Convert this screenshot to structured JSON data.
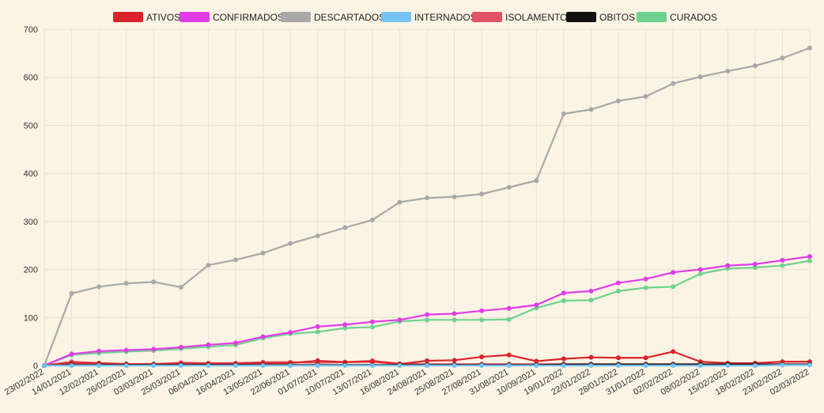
{
  "chart_data": {
    "type": "line",
    "categories": [
      "23/02/2022",
      "14/01/2021",
      "12/02/2021",
      "26/02/2021",
      "03/03/2021",
      "25/03/2021",
      "06/04/2021",
      "16/04/2021",
      "13/05/2021",
      "22/06/2021",
      "01/07/2021",
      "10/07/2021",
      "13/07/2021",
      "16/08/2021",
      "24/08/2021",
      "25/08/2021",
      "27/08/2021",
      "31/08/2021",
      "10/09/2021",
      "19/01/2022",
      "22/01/2022",
      "28/01/2022",
      "31/01/2022",
      "02/02/2022",
      "08/02/2022",
      "15/02/2022",
      "18/02/2022",
      "23/02/2022",
      "02/03/2022"
    ],
    "ylim": [
      0,
      700
    ],
    "yticks": [
      0,
      100,
      200,
      300,
      400,
      500,
      600,
      700
    ],
    "legend_position": "top-center",
    "grid": true,
    "series": [
      {
        "name": "ATIVOS",
        "color": "#d8232a",
        "values": [
          0,
          5,
          5,
          3,
          3,
          4,
          4,
          4,
          5,
          5,
          10,
          7,
          8,
          3,
          10,
          11,
          18,
          22,
          9,
          14,
          17,
          16,
          16,
          29,
          8,
          5,
          5,
          8,
          8
        ]
      },
      {
        "name": "CONFIRMADOS",
        "color": "#e13ce6",
        "values": [
          0,
          24,
          30,
          32,
          34,
          38,
          43,
          47,
          60,
          69,
          81,
          85,
          91,
          95,
          106,
          108,
          114,
          119,
          126,
          151,
          155,
          172,
          180,
          194,
          200,
          208,
          211,
          219,
          227
        ]
      },
      {
        "name": "DESCARTADOS",
        "color": "#a8a8a8",
        "values": [
          0,
          150,
          164,
          171,
          174,
          163,
          209,
          220,
          234,
          254,
          270,
          287,
          303,
          340,
          349,
          351,
          357,
          371,
          385,
          524,
          533,
          551,
          560,
          587,
          601,
          613,
          624,
          640,
          661
        ]
      },
      {
        "name": "INTERNADOS",
        "color": "#74c2f0",
        "values": [
          0,
          0,
          0,
          0,
          0,
          0,
          0,
          0,
          0,
          0,
          0,
          0,
          0,
          0,
          0,
          0,
          0,
          0,
          0,
          0,
          0,
          0,
          0,
          0,
          0,
          0,
          0,
          1,
          1
        ]
      },
      {
        "name": "ISOLAMENTO",
        "color": "#e05566",
        "values": [
          0,
          8,
          5,
          3,
          3,
          6,
          5,
          5,
          7,
          7,
          6,
          7,
          10,
          4,
          3,
          3,
          3,
          3,
          3,
          3,
          3,
          3,
          3,
          3,
          3,
          3,
          3,
          3,
          3
        ]
      },
      {
        "name": "OBITOS",
        "color": "#111111",
        "values": [
          0,
          1,
          1,
          1,
          1,
          1,
          1,
          1,
          1,
          1,
          1,
          1,
          1,
          1,
          1,
          1,
          1,
          1,
          1,
          2,
          2,
          2,
          2,
          2,
          2,
          2,
          2,
          2,
          2
        ]
      },
      {
        "name": "CURADOS",
        "color": "#6fd18f",
        "values": [
          0,
          22,
          26,
          29,
          31,
          35,
          39,
          43,
          57,
          66,
          70,
          78,
          80,
          92,
          95,
          95,
          95,
          96,
          120,
          135,
          136,
          155,
          162,
          164,
          191,
          202,
          204,
          208,
          218
        ]
      }
    ]
  }
}
